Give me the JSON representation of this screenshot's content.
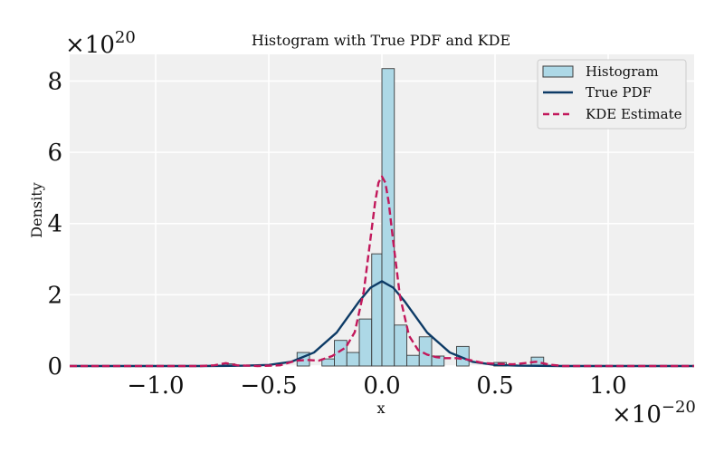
{
  "chart_data": {
    "type": "bar",
    "title": "Histogram with True PDF and KDE",
    "xlabel": "x",
    "ylabel": "Density",
    "x_multiplier": "×10",
    "x_exponent": "−20",
    "y_multiplier": "×10",
    "y_exponent": "20",
    "xlim": [
      -1.38,
      1.38
    ],
    "ylim": [
      0,
      8.75
    ],
    "x_ticks": [
      -1.0,
      -0.5,
      0.0,
      0.5,
      1.0
    ],
    "x_tick_labels": [
      "−1.0",
      "−0.5",
      "0.0",
      "0.5",
      "1.0"
    ],
    "y_ticks": [
      0,
      2,
      4,
      6,
      8
    ],
    "y_tick_labels": [
      "0",
      "2",
      "4",
      "6",
      "8"
    ],
    "grid": true,
    "legend_position": "top-right",
    "histogram": {
      "name": "Histogram",
      "color": "#add8e6",
      "edge_color": "#3a3a3a",
      "bin_edges": [
        -0.76,
        -0.705,
        -0.65,
        -0.595,
        -0.54,
        -0.485,
        -0.43,
        -0.375,
        -0.32,
        -0.265,
        -0.21,
        -0.155,
        -0.1,
        -0.045,
        0.0,
        0.055,
        0.11,
        0.165,
        0.22,
        0.275,
        0.33,
        0.385,
        0.44,
        0.495,
        0.55,
        0.605,
        0.66,
        0.715
      ],
      "values": [
        0.02,
        0.06,
        0.0,
        0.0,
        0.0,
        0.0,
        0.0,
        0.38,
        0.0,
        0.2,
        0.72,
        0.38,
        1.32,
        3.15,
        8.35,
        1.15,
        0.3,
        0.82,
        0.28,
        0.0,
        0.55,
        0.0,
        0.0,
        0.1,
        0.0,
        0.0,
        0.25
      ]
    },
    "series": [
      {
        "name": "True PDF",
        "color": "#0d3b66",
        "style": "solid",
        "x": [
          -1.38,
          -0.8,
          -0.6,
          -0.5,
          -0.4,
          -0.3,
          -0.2,
          -0.1,
          -0.05,
          0.0,
          0.05,
          0.1,
          0.2,
          0.3,
          0.4,
          0.5,
          0.6,
          0.8,
          1.38
        ],
        "y": [
          0.0,
          0.0,
          0.01,
          0.03,
          0.12,
          0.38,
          0.94,
          1.82,
          2.2,
          2.38,
          2.2,
          1.82,
          0.94,
          0.38,
          0.12,
          0.03,
          0.01,
          0.0,
          0.0
        ]
      },
      {
        "name": "KDE Estimate",
        "color": "#c2185b",
        "style": "dashed",
        "x": [
          -1.38,
          -0.8,
          -0.74,
          -0.69,
          -0.64,
          -0.55,
          -0.45,
          -0.38,
          -0.33,
          -0.28,
          -0.22,
          -0.16,
          -0.12,
          -0.08,
          -0.05,
          -0.03,
          -0.015,
          0.0,
          0.015,
          0.03,
          0.05,
          0.08,
          0.12,
          0.16,
          0.2,
          0.24,
          0.28,
          0.33,
          0.38,
          0.45,
          0.52,
          0.58,
          0.63,
          0.68,
          0.74,
          0.8,
          1.38
        ],
        "y": [
          0.0,
          0.0,
          0.02,
          0.08,
          0.02,
          0.0,
          0.02,
          0.15,
          0.17,
          0.15,
          0.28,
          0.52,
          0.95,
          2.1,
          3.6,
          4.6,
          5.15,
          5.32,
          5.15,
          4.6,
          3.5,
          1.95,
          0.85,
          0.45,
          0.32,
          0.25,
          0.22,
          0.22,
          0.18,
          0.08,
          0.06,
          0.05,
          0.08,
          0.12,
          0.04,
          0.0,
          0.0
        ]
      }
    ]
  }
}
